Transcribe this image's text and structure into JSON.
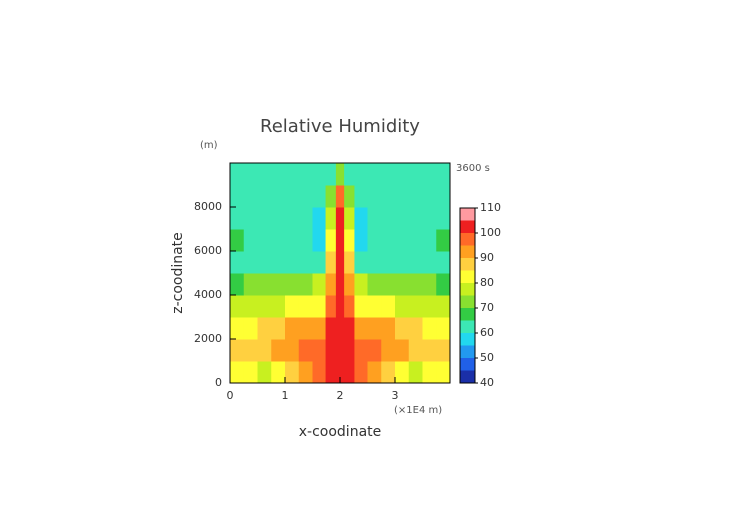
{
  "chart_data": {
    "type": "contour",
    "title": "Relative Humidity",
    "y_unit": "(m)",
    "x_unit": "(×1E4 m)",
    "time_label": "3600 s",
    "xlabel": "x-coodinate",
    "ylabel": "z-coodinate",
    "xlim": [
      0,
      4
    ],
    "ylim": [
      0,
      10000
    ],
    "xticks": [
      0,
      1,
      2,
      3
    ],
    "yticks": [
      0,
      2000,
      4000,
      6000,
      8000
    ],
    "x": [
      0.125,
      0.375,
      0.625,
      0.875,
      1.125,
      1.375,
      1.625,
      1.85,
      2.0,
      2.15,
      2.375,
      2.625,
      2.875,
      3.125,
      3.375,
      3.625,
      3.875
    ],
    "z": [
      500,
      1500,
      2500,
      3500,
      4500,
      5500,
      6500,
      7500,
      8500,
      9500
    ],
    "values": [
      [
        82,
        80,
        78,
        82,
        86,
        90,
        95,
        102,
        102,
        102,
        95,
        90,
        86,
        82,
        78,
        80,
        82
      ],
      [
        88,
        86,
        88,
        92,
        94,
        96,
        98,
        103,
        103,
        103,
        98,
        96,
        94,
        92,
        88,
        86,
        88
      ],
      [
        83,
        84,
        86,
        88,
        90,
        90,
        92,
        101,
        103,
        101,
        92,
        90,
        90,
        88,
        86,
        84,
        83
      ],
      [
        78,
        77,
        76,
        78,
        80,
        80,
        82,
        97,
        103,
        97,
        82,
        80,
        80,
        78,
        76,
        77,
        78
      ],
      [
        68,
        70,
        72,
        71,
        72,
        74,
        75,
        93,
        103,
        93,
        75,
        74,
        72,
        71,
        72,
        70,
        68
      ],
      [
        63,
        63,
        62,
        62,
        62,
        62,
        60,
        85,
        103,
        85,
        60,
        62,
        62,
        62,
        62,
        63,
        63
      ],
      [
        66,
        63,
        62,
        62,
        62,
        62,
        57,
        80,
        103,
        80,
        57,
        62,
        62,
        62,
        62,
        63,
        66
      ],
      [
        63,
        63,
        62,
        62,
        62,
        62,
        58,
        75,
        104,
        75,
        58,
        62,
        62,
        62,
        62,
        63,
        63
      ],
      [
        62,
        62,
        62,
        62,
        62,
        62,
        61,
        70,
        96,
        70,
        61,
        62,
        62,
        62,
        62,
        62,
        62
      ],
      [
        62,
        62,
        62,
        62,
        62,
        62,
        62,
        64,
        72,
        64,
        62,
        62,
        62,
        62,
        62,
        62,
        62
      ]
    ],
    "levels": [
      40,
      45,
      50,
      55,
      60,
      65,
      70,
      75,
      80,
      85,
      90,
      95,
      100,
      105,
      110
    ],
    "colors": [
      "#1a2fa8",
      "#2060e8",
      "#2299f0",
      "#22d8ee",
      "#3ce8b4",
      "#33cc44",
      "#88e030",
      "#c8f020",
      "#ffff33",
      "#ffd040",
      "#ffa020",
      "#ff6a28",
      "#ee2020",
      "#ff9aa0"
    ],
    "colorbar_ticks": [
      40,
      50,
      60,
      70,
      80,
      90,
      100,
      110
    ]
  }
}
